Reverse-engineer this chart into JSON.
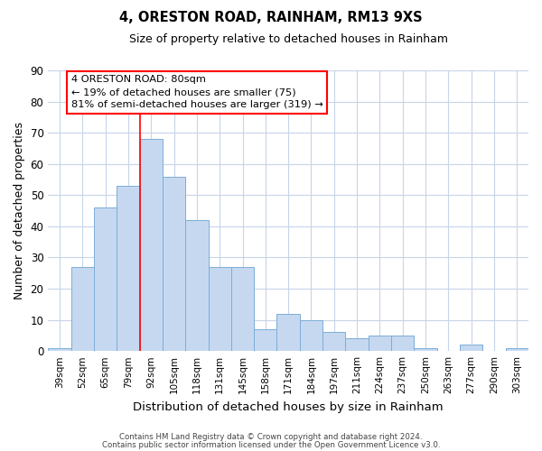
{
  "title": "4, ORESTON ROAD, RAINHAM, RM13 9XS",
  "subtitle": "Size of property relative to detached houses in Rainham",
  "xlabel": "Distribution of detached houses by size in Rainham",
  "ylabel": "Number of detached properties",
  "bar_color": "#c6d8f0",
  "bar_edge_color": "#7badd6",
  "background_color": "#ffffff",
  "grid_color": "#c8d4e8",
  "categories": [
    "39sqm",
    "52sqm",
    "65sqm",
    "79sqm",
    "92sqm",
    "105sqm",
    "118sqm",
    "131sqm",
    "145sqm",
    "158sqm",
    "171sqm",
    "184sqm",
    "197sqm",
    "211sqm",
    "224sqm",
    "237sqm",
    "250sqm",
    "263sqm",
    "277sqm",
    "290sqm",
    "303sqm"
  ],
  "values": [
    1,
    27,
    46,
    53,
    68,
    56,
    42,
    27,
    27,
    7,
    12,
    10,
    6,
    4,
    5,
    5,
    1,
    0,
    2,
    0,
    1
  ],
  "ylim": [
    0,
    90
  ],
  "yticks": [
    0,
    10,
    20,
    30,
    40,
    50,
    60,
    70,
    80,
    90
  ],
  "annotation_line1": "4 ORESTON ROAD: 80sqm",
  "annotation_line2": "← 19% of detached houses are smaller (75)",
  "annotation_line3": "81% of semi-detached houses are larger (319) →",
  "vline_x_index": 3.5,
  "footer_line1": "Contains HM Land Registry data © Crown copyright and database right 2024.",
  "footer_line2": "Contains public sector information licensed under the Open Government Licence v3.0."
}
